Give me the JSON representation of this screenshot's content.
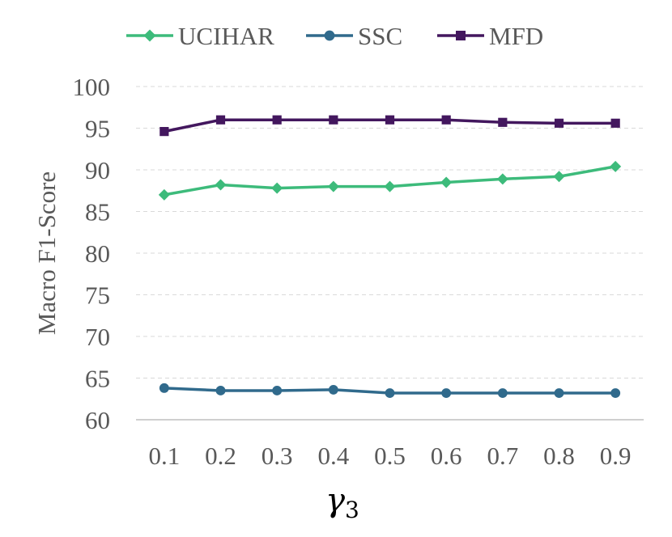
{
  "chart_data": {
    "type": "line",
    "title": "",
    "xlabel": "γ",
    "xlabel_subscript": "3",
    "ylabel": "Macro F1-Score",
    "categories": [
      "0.1",
      "0.2",
      "0.3",
      "0.4",
      "0.5",
      "0.6",
      "0.7",
      "0.8",
      "0.9"
    ],
    "ylim": [
      60,
      100
    ],
    "yticks": [
      60,
      65,
      70,
      75,
      80,
      85,
      90,
      95,
      100
    ],
    "grid": true,
    "legend_position": "top",
    "series": [
      {
        "name": "UCIHAR",
        "color": "#3dbb7b",
        "marker": "diamond",
        "values": [
          87.0,
          88.2,
          87.8,
          88.0,
          88.0,
          88.5,
          88.9,
          89.2,
          90.4
        ]
      },
      {
        "name": "SSC",
        "color": "#306a8c",
        "marker": "circle",
        "values": [
          63.8,
          63.5,
          63.5,
          63.6,
          63.2,
          63.2,
          63.2,
          63.2,
          63.2
        ]
      },
      {
        "name": "MFD",
        "color": "#43175e",
        "marker": "square",
        "values": [
          94.6,
          96.0,
          96.0,
          96.0,
          96.0,
          96.0,
          95.7,
          95.6,
          95.6
        ]
      }
    ]
  }
}
